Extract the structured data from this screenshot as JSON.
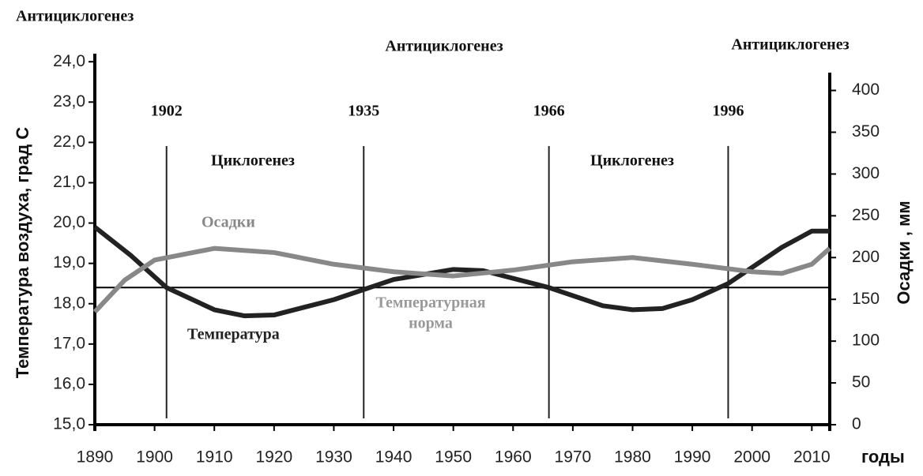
{
  "chart_data": {
    "type": "line",
    "xlabel": "годы",
    "ylabel": "Температура воздуха, град С",
    "y2label": "Осадки , мм",
    "xlim": [
      1890,
      2013
    ],
    "xticks": [
      1890,
      1900,
      1910,
      1920,
      1930,
      1940,
      1950,
      1960,
      1970,
      1980,
      1990,
      2000,
      2010
    ],
    "ylim": [
      15,
      24.2
    ],
    "yticks": [
      {
        "value": 15,
        "label": "15,0"
      },
      {
        "value": 16,
        "label": "16,0"
      },
      {
        "value": 17,
        "label": "17,0"
      },
      {
        "value": 18,
        "label": "18,0"
      },
      {
        "value": 19,
        "label": "19,0"
      },
      {
        "value": 20,
        "label": "20,0"
      },
      {
        "value": 21,
        "label": "21,0"
      },
      {
        "value": 22,
        "label": "22,0"
      },
      {
        "value": 23,
        "label": "23,0"
      },
      {
        "value": 24,
        "label": "24,0"
      }
    ],
    "y2lim": [
      0,
      444
    ],
    "y2ticks": [
      0,
      50,
      100,
      150,
      200,
      250,
      300,
      350,
      400
    ],
    "series": [
      {
        "name": "Температура",
        "color": "#222222",
        "x": [
          1890,
          1896,
          1902,
          1910,
          1915,
          1920,
          1930,
          1940,
          1950,
          1955,
          1966,
          1975,
          1980,
          1985,
          1990,
          1996,
          2000,
          2005,
          2010,
          2013
        ],
        "values": [
          19.9,
          19.2,
          18.4,
          17.85,
          17.7,
          17.72,
          18.1,
          18.6,
          18.85,
          18.82,
          18.4,
          17.95,
          17.85,
          17.88,
          18.1,
          18.5,
          18.9,
          19.4,
          19.8,
          19.8
        ]
      },
      {
        "name": "Осадки",
        "color": "#888888",
        "axis": "y2",
        "x": [
          1890,
          1895,
          1900,
          1910,
          1920,
          1930,
          1940,
          1950,
          1960,
          1970,
          1980,
          1990,
          2000,
          2005,
          2010,
          2013
        ],
        "values": [
          135,
          173,
          197,
          211,
          206,
          192,
          183,
          178,
          185,
          195,
          200,
          192,
          183,
          181,
          192,
          211
        ]
      }
    ],
    "norm": {
      "label": [
        "Температурная",
        "норма"
      ],
      "value": 18.4,
      "color": "#999999"
    },
    "boundaries": [
      1902,
      1935,
      1966,
      1996
    ],
    "phases": [
      "Антициклогенез",
      "Циклогенез",
      "Антициклогенез",
      "Циклогенез",
      "Антициклогенез"
    ]
  }
}
